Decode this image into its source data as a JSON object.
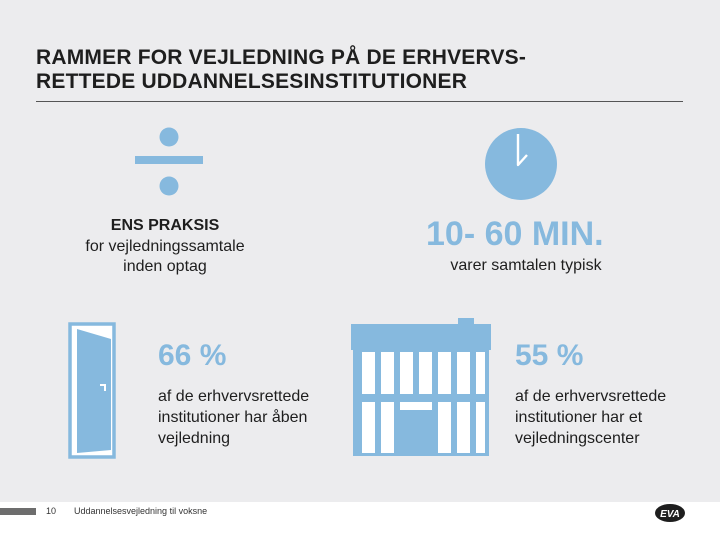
{
  "title": {
    "line1": "RAMMER FOR VEJLEDNING PÅ DE ERHVERVS-",
    "line2": "RETTEDE UDDANNELSESINSTITUTIONER"
  },
  "practice": {
    "heading": "ENS PRAKSIS",
    "line1": "for vejledningssamtale",
    "line2": "inden optag"
  },
  "duration": {
    "value": "10- 60 MIN.",
    "caption": "varer samtalen typisk"
  },
  "open_guidance": {
    "percent": "66 %",
    "line1": "af de erhvervsrettede",
    "line2": "institutioner har åben",
    "line3": "vejledning"
  },
  "center": {
    "percent": "55 %",
    "line1": "af de erhvervsrettede",
    "line2": "institutioner har et",
    "line3": "vejledningscenter"
  },
  "footer": {
    "page_number": "10",
    "text": "Uddannelsesvejledning til voksne",
    "logo_text": "EVA"
  },
  "icons": {
    "divide": "divide-icon",
    "clock": "clock-icon",
    "door": "open-door-icon",
    "building": "building-icon"
  },
  "colors": {
    "accent": "#86b9de",
    "text": "#1e1e1e",
    "background": "#ececee"
  }
}
